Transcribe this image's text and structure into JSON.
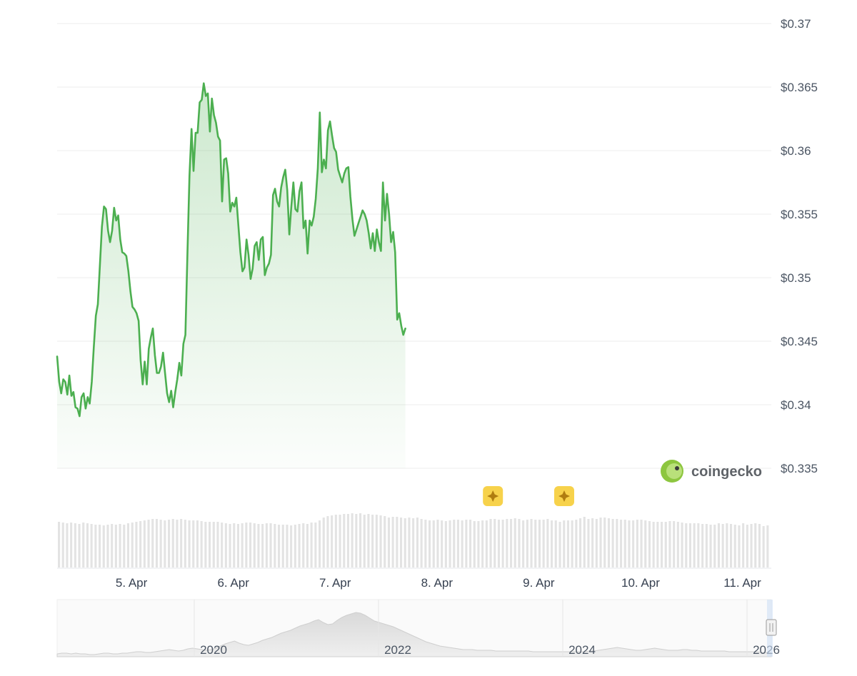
{
  "chart_data": {
    "type": "area",
    "title": "",
    "xlabel": "",
    "ylabel": "",
    "ylim": [
      0.335,
      0.37
    ],
    "y_ticks": [
      "$0.37",
      "$0.365",
      "$0.36",
      "$0.355",
      "$0.35",
      "$0.345",
      "$0.34",
      "$0.335"
    ],
    "y_tick_values": [
      0.37,
      0.365,
      0.36,
      0.355,
      0.35,
      0.345,
      0.34,
      0.335
    ],
    "x_ticks": [
      "5. Apr",
      "6. Apr",
      "7. Apr",
      "8. Apr",
      "9. Apr",
      "10. Apr",
      "11. Apr"
    ],
    "x_tick_values": [
      5,
      6,
      7,
      8,
      9,
      10,
      11
    ],
    "xlim": [
      4.27,
      11.27
    ],
    "grid": true,
    "line_color": "#4caf50",
    "series": [
      {
        "values": [
          [
            4.27,
            0.3438
          ],
          [
            4.29,
            0.3418
          ],
          [
            4.31,
            0.3409
          ],
          [
            4.33,
            0.342
          ],
          [
            4.35,
            0.3418
          ],
          [
            4.37,
            0.3408
          ],
          [
            4.39,
            0.3423
          ],
          [
            4.41,
            0.3407
          ],
          [
            4.43,
            0.341
          ],
          [
            4.45,
            0.3398
          ],
          [
            4.47,
            0.3397
          ],
          [
            4.49,
            0.3391
          ],
          [
            4.51,
            0.3406
          ],
          [
            4.53,
            0.3409
          ],
          [
            4.55,
            0.3397
          ],
          [
            4.57,
            0.3406
          ],
          [
            4.59,
            0.3401
          ],
          [
            4.61,
            0.3418
          ],
          [
            4.63,
            0.3445
          ],
          [
            4.65,
            0.347
          ],
          [
            4.67,
            0.3479
          ],
          [
            4.69,
            0.351
          ],
          [
            4.71,
            0.354
          ],
          [
            4.73,
            0.3556
          ],
          [
            4.75,
            0.3554
          ],
          [
            4.77,
            0.3537
          ],
          [
            4.79,
            0.3528
          ],
          [
            4.81,
            0.3537
          ],
          [
            4.83,
            0.3555
          ],
          [
            4.85,
            0.3545
          ],
          [
            4.87,
            0.3549
          ],
          [
            4.89,
            0.353
          ],
          [
            4.91,
            0.352
          ],
          [
            4.93,
            0.3519
          ],
          [
            4.95,
            0.3517
          ],
          [
            4.97,
            0.3505
          ],
          [
            4.99,
            0.3489
          ],
          [
            5.01,
            0.3477
          ],
          [
            5.03,
            0.3475
          ],
          [
            5.05,
            0.3472
          ],
          [
            5.07,
            0.3466
          ],
          [
            5.09,
            0.3435
          ],
          [
            5.11,
            0.3416
          ],
          [
            5.13,
            0.3434
          ],
          [
            5.15,
            0.3416
          ],
          [
            5.17,
            0.3444
          ],
          [
            5.19,
            0.3453
          ],
          [
            5.21,
            0.346
          ],
          [
            5.23,
            0.3439
          ],
          [
            5.25,
            0.3425
          ],
          [
            5.27,
            0.3425
          ],
          [
            5.29,
            0.343
          ],
          [
            5.31,
            0.3441
          ],
          [
            5.33,
            0.3425
          ],
          [
            5.35,
            0.3409
          ],
          [
            5.37,
            0.3402
          ],
          [
            5.39,
            0.3411
          ],
          [
            5.41,
            0.3398
          ],
          [
            5.43,
            0.341
          ],
          [
            5.45,
            0.342
          ],
          [
            5.47,
            0.3433
          ],
          [
            5.49,
            0.3423
          ],
          [
            5.51,
            0.3448
          ],
          [
            5.53,
            0.3455
          ],
          [
            5.55,
            0.352
          ],
          [
            5.57,
            0.358
          ],
          [
            5.59,
            0.3617
          ],
          [
            5.61,
            0.3584
          ],
          [
            5.63,
            0.3614
          ],
          [
            5.65,
            0.3614
          ],
          [
            5.67,
            0.3638
          ],
          [
            5.69,
            0.364
          ],
          [
            5.71,
            0.3653
          ],
          [
            5.73,
            0.3643
          ],
          [
            5.75,
            0.3645
          ],
          [
            5.77,
            0.3615
          ],
          [
            5.79,
            0.3641
          ],
          [
            5.81,
            0.3628
          ],
          [
            5.83,
            0.3622
          ],
          [
            5.85,
            0.3611
          ],
          [
            5.87,
            0.3608
          ],
          [
            5.89,
            0.356
          ],
          [
            5.91,
            0.3593
          ],
          [
            5.93,
            0.3594
          ],
          [
            5.95,
            0.3582
          ],
          [
            5.97,
            0.3552
          ],
          [
            5.99,
            0.3559
          ],
          [
            6.01,
            0.3556
          ],
          [
            6.03,
            0.3563
          ],
          [
            6.05,
            0.3541
          ],
          [
            6.07,
            0.352
          ],
          [
            6.09,
            0.3505
          ],
          [
            6.11,
            0.3508
          ],
          [
            6.13,
            0.353
          ],
          [
            6.15,
            0.3518
          ],
          [
            6.17,
            0.3499
          ],
          [
            6.19,
            0.3507
          ],
          [
            6.21,
            0.3525
          ],
          [
            6.23,
            0.3528
          ],
          [
            6.25,
            0.3514
          ],
          [
            6.27,
            0.353
          ],
          [
            6.29,
            0.3532
          ],
          [
            6.31,
            0.3502
          ],
          [
            6.33,
            0.3508
          ],
          [
            6.35,
            0.3511
          ],
          [
            6.37,
            0.3518
          ],
          [
            6.39,
            0.3565
          ],
          [
            6.41,
            0.357
          ],
          [
            6.43,
            0.356
          ],
          [
            6.45,
            0.3556
          ],
          [
            6.47,
            0.3571
          ],
          [
            6.49,
            0.3579
          ],
          [
            6.51,
            0.3585
          ],
          [
            6.53,
            0.3569
          ],
          [
            6.55,
            0.3534
          ],
          [
            6.57,
            0.3556
          ],
          [
            6.59,
            0.3575
          ],
          [
            6.61,
            0.3554
          ],
          [
            6.63,
            0.3552
          ],
          [
            6.65,
            0.3568
          ],
          [
            6.67,
            0.3575
          ],
          [
            6.69,
            0.3539
          ],
          [
            6.71,
            0.3545
          ],
          [
            6.73,
            0.3519
          ],
          [
            6.75,
            0.3545
          ],
          [
            6.77,
            0.3541
          ],
          [
            6.79,
            0.3548
          ],
          [
            6.81,
            0.3562
          ],
          [
            6.83,
            0.3586
          ],
          [
            6.85,
            0.363
          ],
          [
            6.87,
            0.3583
          ],
          [
            6.89,
            0.3593
          ],
          [
            6.91,
            0.3586
          ],
          [
            6.93,
            0.3616
          ],
          [
            6.95,
            0.3623
          ],
          [
            6.97,
            0.3612
          ],
          [
            6.99,
            0.3602
          ],
          [
            7.01,
            0.3599
          ],
          [
            7.03,
            0.3585
          ],
          [
            7.05,
            0.358
          ],
          [
            7.07,
            0.3575
          ],
          [
            7.09,
            0.3582
          ],
          [
            7.11,
            0.3586
          ],
          [
            7.13,
            0.3587
          ],
          [
            7.15,
            0.3564
          ],
          [
            7.17,
            0.3546
          ],
          [
            7.19,
            0.3533
          ],
          [
            7.21,
            0.3538
          ],
          [
            7.23,
            0.3543
          ],
          [
            7.25,
            0.3548
          ],
          [
            7.27,
            0.3553
          ],
          [
            7.29,
            0.355
          ],
          [
            7.31,
            0.3545
          ],
          [
            7.33,
            0.3535
          ],
          [
            7.35,
            0.3523
          ],
          [
            7.37,
            0.3535
          ],
          [
            7.39,
            0.3521
          ],
          [
            7.41,
            0.3538
          ],
          [
            7.43,
            0.3528
          ],
          [
            7.45,
            0.3521
          ],
          [
            7.47,
            0.3575
          ],
          [
            7.49,
            0.3545
          ],
          [
            7.51,
            0.3566
          ],
          [
            7.53,
            0.355
          ],
          [
            7.55,
            0.3528
          ],
          [
            7.57,
            0.3536
          ],
          [
            7.59,
            0.352
          ],
          [
            7.61,
            0.3467
          ],
          [
            7.63,
            0.3472
          ],
          [
            7.65,
            0.3462
          ],
          [
            7.67,
            0.3455
          ],
          [
            7.69,
            0.346
          ]
        ]
      }
    ]
  },
  "volume": {
    "label": "volume",
    "values": [
      64,
      63,
      62,
      63,
      62,
      61,
      63,
      62,
      61,
      60,
      60,
      59,
      60,
      61,
      60,
      61,
      60,
      62,
      63,
      64,
      65,
      66,
      67,
      68,
      68,
      67,
      66,
      67,
      68,
      67,
      68,
      67,
      66,
      66,
      66,
      65,
      64,
      64,
      64,
      64,
      63,
      62,
      61,
      62,
      61,
      62,
      63,
      63,
      62,
      61,
      61,
      62,
      62,
      61,
      60,
      60,
      60,
      59,
      60,
      61,
      62,
      61,
      63,
      63,
      66,
      70,
      72,
      73,
      74,
      74,
      75,
      75,
      76,
      75,
      76,
      74,
      75,
      74,
      74,
      73,
      72,
      70,
      71,
      71,
      70,
      69,
      70,
      69,
      70,
      68,
      67,
      66,
      66,
      67,
      66,
      65,
      66,
      67,
      67,
      66,
      67,
      67,
      65,
      65,
      66,
      66,
      68,
      68,
      67,
      67,
      68,
      68,
      69,
      68,
      66,
      67,
      68,
      67,
      67,
      67,
      68,
      66,
      66,
      64,
      66,
      66,
      66,
      67,
      69,
      71,
      68,
      69,
      68,
      70,
      70,
      69,
      68,
      68,
      67,
      67,
      66,
      66,
      67,
      67,
      66,
      65,
      64,
      64,
      64,
      64,
      65,
      65,
      64,
      63,
      62,
      62,
      62,
      62,
      61,
      61,
      60,
      60,
      62,
      61,
      62,
      61,
      60,
      59,
      62,
      60,
      61,
      62,
      61,
      58,
      59
    ]
  },
  "navigator": {
    "x_ticks": [
      "2020",
      "2022",
      "2024",
      "2026"
    ],
    "history": [
      4,
      5,
      5,
      4,
      5,
      4,
      4,
      3,
      3,
      4,
      5,
      5,
      4,
      4,
      5,
      5,
      6,
      7,
      7,
      6,
      6,
      7,
      8,
      9,
      10,
      9,
      8,
      9,
      11,
      12,
      11,
      10,
      9,
      10,
      12,
      15,
      18,
      20,
      22,
      19,
      17,
      16,
      18,
      20,
      23,
      25,
      27,
      30,
      33,
      35,
      37,
      40,
      43,
      45,
      47,
      50,
      52,
      48,
      45,
      46,
      51,
      55,
      58,
      60,
      62,
      61,
      58,
      54,
      50,
      48,
      46,
      44,
      42,
      39,
      36,
      33,
      30,
      27,
      24,
      21,
      19,
      17,
      15,
      14,
      13,
      12,
      11,
      10,
      10,
      10,
      9,
      9,
      9,
      9,
      8,
      8,
      8,
      8,
      8,
      8,
      8,
      8,
      7,
      7,
      7,
      7,
      7,
      7,
      7,
      7,
      7,
      7,
      7,
      7,
      8,
      8,
      9,
      10,
      11,
      12,
      13,
      12,
      11,
      10,
      9,
      9,
      10,
      11,
      12,
      11,
      10,
      9,
      9,
      9,
      10,
      10,
      9,
      9,
      8,
      8,
      8,
      8,
      8,
      8,
      7,
      7,
      7,
      7,
      7,
      7,
      7,
      6,
      6,
      6
    ]
  },
  "branding": {
    "logo_text": "coingecko",
    "brand_colors": {
      "gecko": "#8dc63f",
      "text": "#5f6368"
    }
  },
  "event_markers": [
    {
      "x": 8.55,
      "icon": "sparkle-icon",
      "color": "#f7d24b"
    },
    {
      "x": 9.25,
      "icon": "sparkle-icon",
      "color": "#f7d24b"
    }
  ]
}
